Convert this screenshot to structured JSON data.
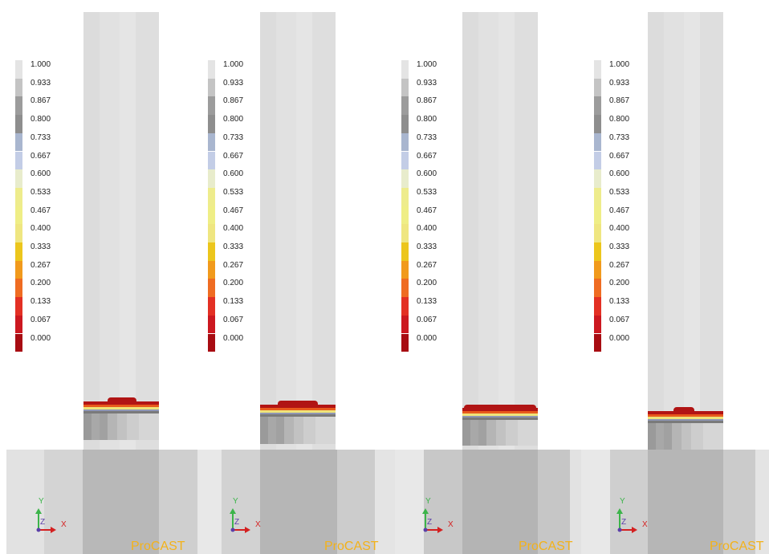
{
  "legend": {
    "labels": [
      "1.000",
      "0.933",
      "0.867",
      "0.800",
      "0.733",
      "0.667",
      "0.600",
      "0.533",
      "0.467",
      "0.400",
      "0.333",
      "0.267",
      "0.200",
      "0.133",
      "0.067",
      "0.000"
    ],
    "colors": [
      "#e4e4e4",
      "#c4c4c4",
      "#9c9c9c",
      "#8e8e8e",
      "#a9b6cf",
      "#c3cde6",
      "#e8eccc",
      "#eeec8c",
      "#efee86",
      "#efe681",
      "#ecc61c",
      "#f19a1c",
      "#ef6c22",
      "#e33024",
      "#cc1820",
      "#a80c12"
    ]
  },
  "axis": {
    "y_label": "Y",
    "z_label": "Z",
    "x_label": "X",
    "colors": {
      "x": "#d42020",
      "y": "#3cb44a",
      "z": "#5b3fa8"
    }
  },
  "brand": {
    "text": "ProCAST",
    "color": "#f3b21a"
  },
  "panels": [
    {
      "id": 1,
      "front_fraction": 0.92
    },
    {
      "id": 2,
      "front_fraction": 0.93
    },
    {
      "id": 3,
      "front_fraction": 0.94
    },
    {
      "id": 4,
      "front_fraction": 0.95
    }
  ]
}
